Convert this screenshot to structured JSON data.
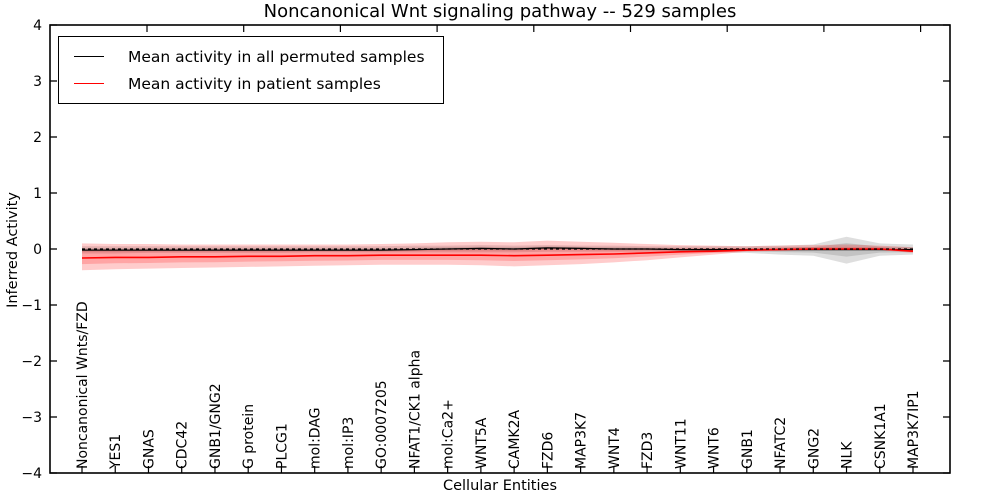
{
  "title": "Noncanonical Wnt signaling pathway -- 529 samples",
  "chart_data": {
    "type": "line",
    "title": "Noncanonical Wnt signaling pathway -- 529 samples",
    "xlabel": "Cellular Entities",
    "ylabel": "Inferred Activity",
    "ylim": [
      -4,
      4
    ],
    "yticks": [
      4,
      3,
      2,
      1,
      0,
      -1,
      -2,
      -3,
      -4
    ],
    "grid": false,
    "legend_position": "upper-left",
    "categories": [
      "Noncanonical Wnts/FZD",
      "YES1",
      "GNAS",
      "CDC42",
      "GNB1/GNG2",
      "G protein",
      "PLCG1",
      "mol:DAG",
      "mol:IP3",
      "GO:0007205",
      "NFAT1/CK1 alpha",
      "mol:Ca2+",
      "WNT5A",
      "CAMK2A",
      "FZD6",
      "MAP3K7",
      "WNT4",
      "FZD3",
      "WNT11",
      "WNT6",
      "GNB1",
      "NFATC2",
      "GNG2",
      "NLK",
      "CSNK1A1",
      "MAP3K7IP1"
    ],
    "series": [
      {
        "name": "Mean activity in all permuted samples",
        "color": "#000000",
        "values": [
          -0.02,
          -0.02,
          -0.02,
          -0.02,
          -0.02,
          -0.02,
          -0.02,
          -0.02,
          -0.02,
          -0.02,
          -0.01,
          0.0,
          0.01,
          0.0,
          0.02,
          0.01,
          0.0,
          0.0,
          -0.01,
          -0.01,
          -0.01,
          -0.01,
          -0.01,
          -0.01,
          -0.01,
          -0.01
        ]
      },
      {
        "name": "Mean activity in patient samples",
        "color": "#ff0000",
        "values": [
          -0.16,
          -0.15,
          -0.15,
          -0.14,
          -0.14,
          -0.13,
          -0.13,
          -0.12,
          -0.12,
          -0.11,
          -0.11,
          -0.11,
          -0.11,
          -0.12,
          -0.11,
          -0.1,
          -0.09,
          -0.07,
          -0.05,
          -0.04,
          -0.02,
          -0.01,
          0.0,
          0.0,
          0.0,
          -0.04
        ]
      }
    ],
    "bands": [
      {
        "name": "permuted-samples-range",
        "color": "#000000",
        "opacity": 0.13,
        "series_index": 0,
        "upper": [
          0.05,
          0.05,
          0.05,
          0.05,
          0.05,
          0.05,
          0.05,
          0.05,
          0.05,
          0.05,
          0.06,
          0.06,
          0.07,
          0.06,
          0.07,
          0.06,
          0.06,
          0.05,
          0.05,
          0.05,
          0.05,
          0.06,
          0.08,
          0.22,
          0.1,
          0.08
        ],
        "lower": [
          -0.08,
          -0.08,
          -0.07,
          -0.07,
          -0.07,
          -0.07,
          -0.07,
          -0.06,
          -0.06,
          -0.06,
          -0.06,
          -0.06,
          -0.06,
          -0.06,
          -0.05,
          -0.05,
          -0.05,
          -0.05,
          -0.05,
          -0.06,
          -0.07,
          -0.1,
          -0.12,
          -0.26,
          -0.12,
          -0.1
        ]
      },
      {
        "name": "patient-samples-range",
        "color": "#ff0000",
        "opacity": 0.2,
        "series_index": 1,
        "upper": [
          0.1,
          0.09,
          0.09,
          0.08,
          0.08,
          0.08,
          0.08,
          0.08,
          0.08,
          0.09,
          0.1,
          0.12,
          0.13,
          0.12,
          0.15,
          0.13,
          0.11,
          0.09,
          0.07,
          0.06,
          0.05,
          0.06,
          0.07,
          0.08,
          0.06,
          0.03
        ],
        "lower": [
          -0.38,
          -0.36,
          -0.35,
          -0.34,
          -0.33,
          -0.32,
          -0.31,
          -0.3,
          -0.29,
          -0.28,
          -0.28,
          -0.28,
          -0.29,
          -0.31,
          -0.29,
          -0.27,
          -0.24,
          -0.2,
          -0.15,
          -0.1,
          -0.05,
          -0.03,
          -0.02,
          -0.02,
          -0.02,
          -0.07
        ]
      }
    ],
    "zero_line": {
      "y": 0,
      "style": "dashed",
      "color": "#000000"
    }
  }
}
